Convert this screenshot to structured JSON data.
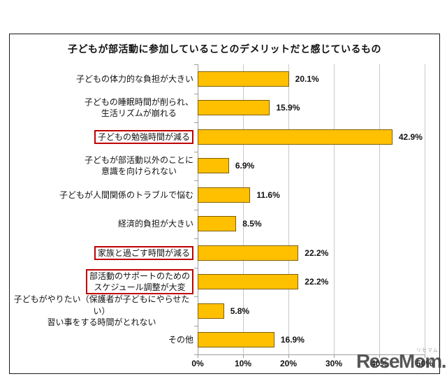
{
  "title": "子どもが部活動に参加していることのデメリットだと感じているもの",
  "chart_data": {
    "type": "bar",
    "orientation": "horizontal",
    "title": "子どもが部活動に参加していることのデメリットだと感じているもの",
    "categories": [
      "子どもの体力的な負担が大きい",
      "子どもの睡眠時間が削られ、\n生活リズムが崩れる",
      "子どもの勉強時間が減る",
      "子どもが部活動以外のことに\n意識を向けられない",
      "子どもが人間関係のトラブルで悩む",
      "経済的負担が大きい",
      "家族と過ごす時間が減る",
      "部活動のサポートのための\nスケジュール調整が大変",
      "子どもがやりたい（保護者が子どもにやらせたい）\n習い事をする時間がとれない",
      "その他"
    ],
    "values": [
      20.1,
      15.9,
      42.9,
      6.9,
      11.6,
      8.5,
      22.2,
      22.2,
      5.8,
      16.9
    ],
    "value_labels": [
      "20.1%",
      "15.9%",
      "42.9%",
      "6.9%",
      "11.6%",
      "8.5%",
      "22.2%",
      "22.2%",
      "5.8%",
      "16.9%"
    ],
    "highlighted_indices": [
      2,
      6,
      7
    ],
    "xlim": [
      0,
      50
    ],
    "x_tick_values": [
      0,
      10,
      20,
      30,
      40,
      50
    ],
    "x_ticks": [
      "0%",
      "10%",
      "20%",
      "30%",
      "40%",
      "50%"
    ],
    "grid": true,
    "legend": "none",
    "bar_color": "#FFC000",
    "bar_border_color": "#7F6000",
    "highlight_box_color": "#C00000",
    "gridline_color": "#C9C9C9",
    "axis_color": "#9E9E9E"
  },
  "watermark": {
    "text": "ReseMom.",
    "ruby": "リセマム"
  }
}
